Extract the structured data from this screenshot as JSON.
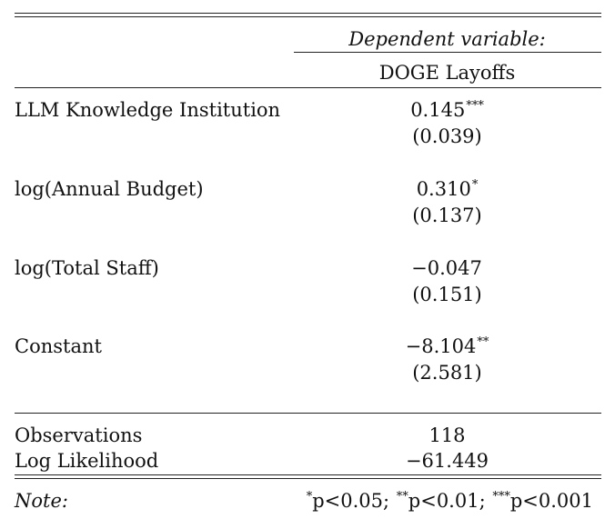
{
  "header": {
    "dependent_variable_label": "Dependent variable:",
    "dependent_variable": "DOGE Layoffs"
  },
  "rows": [
    {
      "name": "LLM Knowledge Institution",
      "coef": "0.145",
      "stars": "***",
      "se": "(0.039)"
    },
    {
      "name": "log(Annual Budget)",
      "coef": "0.310",
      "stars": "*",
      "se": "(0.137)"
    },
    {
      "name": "log(Total Staff)",
      "coef": "−0.047",
      "stars": "",
      "se": "(0.151)"
    },
    {
      "name": "Constant",
      "coef": "−8.104",
      "stars": "**",
      "se": "(2.581)"
    }
  ],
  "stats": [
    {
      "name": "Observations",
      "value": "118"
    },
    {
      "name": "Log Likelihood",
      "value": "−61.449"
    }
  ],
  "note": {
    "label": "Note:",
    "star1": "*",
    "text1": "p<0.05; ",
    "star2": "**",
    "text2": "p<0.01; ",
    "star3": "***",
    "text3": "p<0.001"
  }
}
